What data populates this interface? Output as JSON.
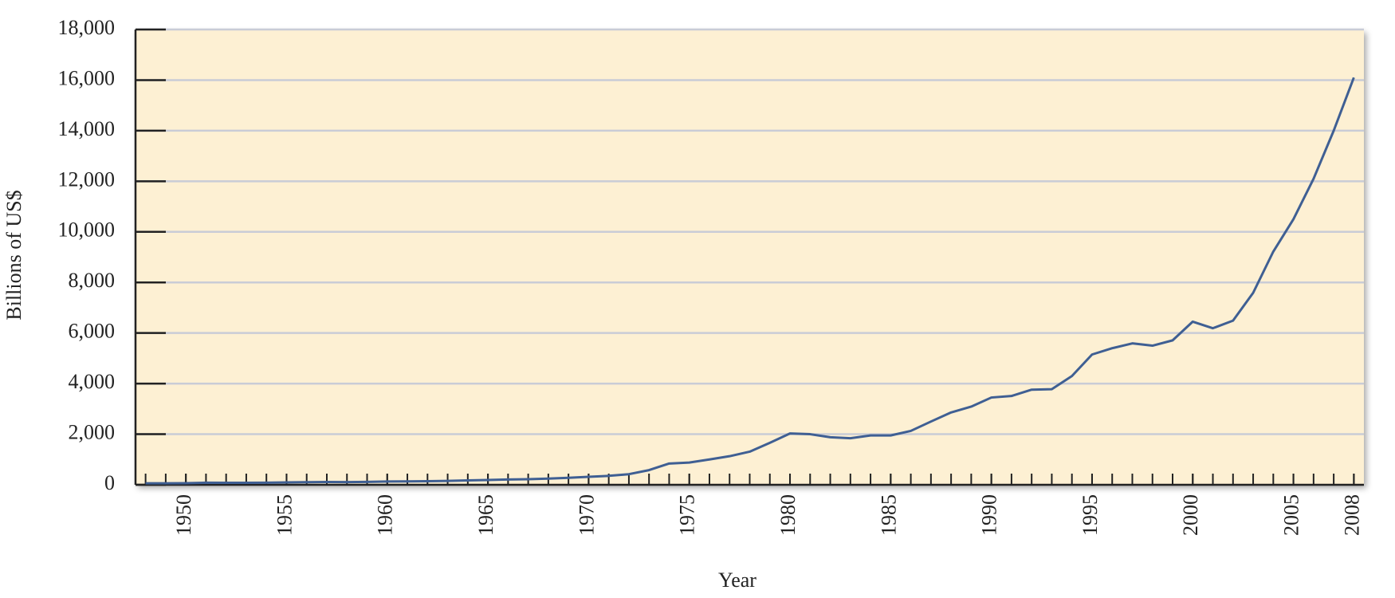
{
  "chart_data": {
    "type": "line",
    "x_label": "Year",
    "y_label": "Billions of US$",
    "x": [
      1948,
      1949,
      1950,
      1951,
      1952,
      1953,
      1954,
      1955,
      1956,
      1957,
      1958,
      1959,
      1960,
      1961,
      1962,
      1963,
      1964,
      1965,
      1966,
      1967,
      1968,
      1969,
      1970,
      1971,
      1972,
      1973,
      1974,
      1975,
      1976,
      1977,
      1978,
      1979,
      1980,
      1981,
      1982,
      1983,
      1984,
      1985,
      1986,
      1987,
      1988,
      1989,
      1990,
      1991,
      1992,
      1993,
      1994,
      1995,
      1996,
      1997,
      1998,
      1999,
      2000,
      2001,
      2002,
      2003,
      2004,
      2005,
      2006,
      2007,
      2008
    ],
    "values": [
      58,
      59,
      62,
      82,
      80,
      80,
      83,
      94,
      104,
      112,
      108,
      116,
      130,
      135,
      142,
      155,
      175,
      190,
      210,
      220,
      243,
      277,
      317,
      353,
      419,
      580,
      840,
      880,
      1000,
      1130,
      1310,
      1660,
      2030,
      2000,
      1880,
      1840,
      1950,
      1950,
      2130,
      2500,
      2860,
      3090,
      3450,
      3510,
      3760,
      3780,
      4300,
      5150,
      5400,
      5590,
      5500,
      5710,
      6450,
      6190,
      6490,
      7590,
      9220,
      10500,
      12100,
      14000,
      16100
    ],
    "color": "#3f5f93",
    "xlim": [
      1947.5,
      2008.5
    ],
    "xticks": [
      1950,
      1955,
      1960,
      1965,
      1970,
      1975,
      1980,
      1985,
      1990,
      1995,
      2000,
      2005,
      2008
    ],
    "ylim": [
      0,
      18000
    ],
    "yticks": [
      0,
      {
        "value": 2000,
        "label": "2,000"
      },
      {
        "value": 4000,
        "label": "4,000"
      },
      {
        "value": 6000,
        "label": "6,000"
      },
      {
        "value": 8000,
        "label": "8,000"
      },
      {
        "value": 10000,
        "label": "10,000"
      },
      {
        "value": 12000,
        "label": "12,000"
      },
      {
        "value": 14000,
        "label": "14,000"
      },
      {
        "value": 16000,
        "label": "16,000"
      },
      {
        "value": 18000,
        "label": "18,000"
      }
    ],
    "grid": true,
    "background": "#fdf0d3"
  }
}
